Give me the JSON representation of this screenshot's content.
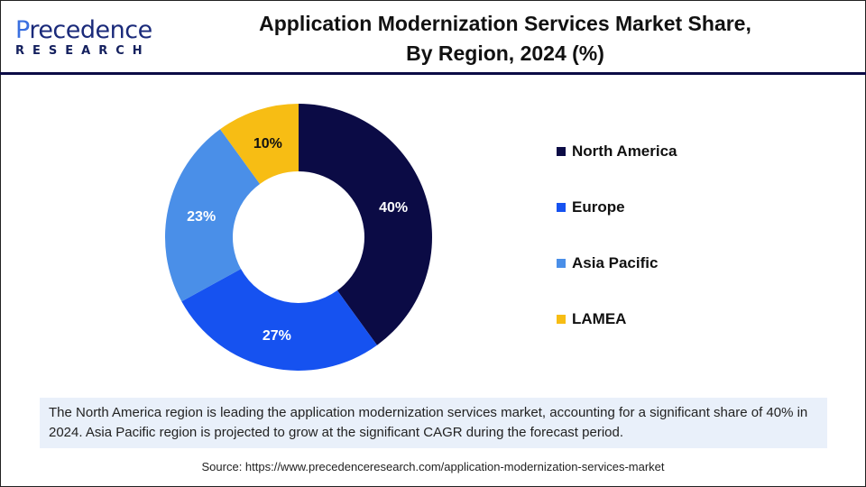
{
  "logo": {
    "text_top_p": "P",
    "text_top_rest": "recedence",
    "text_bottom": "RESEARCH"
  },
  "title_line1": "Application Modernization Services Market Share,",
  "title_line2": "By Region, 2024 (%)",
  "chart_data": {
    "type": "pie",
    "donut": true,
    "title": "Application Modernization Services Market Share, By Region, 2024 (%)",
    "categories": [
      "North America",
      "Europe",
      "Asia Pacific",
      "LAMEA"
    ],
    "values": [
      40,
      27,
      23,
      10
    ],
    "labels": [
      "40%",
      "27%",
      "23%",
      "10%"
    ],
    "colors": [
      "#0b0b45",
      "#1652f0",
      "#4a8fe8",
      "#f7bd14"
    ],
    "start": "top",
    "direction": "clockwise",
    "legend_position": "right"
  },
  "note": "The North America region is leading the application modernization services market, accounting for a significant share of 40% in 2024. Asia Pacific region is projected to grow at the significant CAGR during the forecast period.",
  "source": "Source: https://www.precedenceresearch.com/application-modernization-services-market"
}
